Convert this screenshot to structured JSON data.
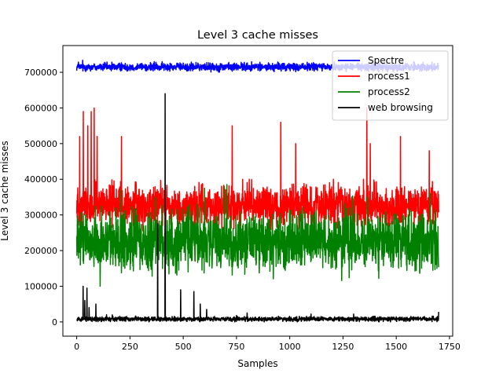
{
  "chart_data": {
    "type": "line",
    "title": "Level 3 cache misses",
    "xlabel": "Samples",
    "ylabel": "Level 3 cache misses",
    "xlim": [
      -65,
      1765
    ],
    "ylim": [
      -40000,
      775000
    ],
    "xticks": [
      0,
      250,
      500,
      750,
      1000,
      1250,
      1500,
      1750
    ],
    "yticks": [
      0,
      100000,
      200000,
      300000,
      400000,
      500000,
      600000,
      700000
    ],
    "grid": false,
    "legend_position": "top-right",
    "n_samples": 1700,
    "series": [
      {
        "name": "Spectre",
        "color": "#0000ff",
        "base": 715000,
        "noise": 7000,
        "min": 698000,
        "max": 738000,
        "spikes": []
      },
      {
        "name": "process1",
        "color": "#ff0000",
        "base": 325000,
        "noise": 35000,
        "min": 160000,
        "max": 400000,
        "spikes": [
          [
            14,
            520000
          ],
          [
            31,
            590000
          ],
          [
            52,
            550000
          ],
          [
            68,
            590000
          ],
          [
            82,
            600000
          ],
          [
            96,
            520000
          ],
          [
            210,
            520000
          ],
          [
            556,
            170000
          ],
          [
            730,
            550000
          ],
          [
            958,
            560000
          ],
          [
            1028,
            500000
          ],
          [
            1205,
            400000
          ],
          [
            1362,
            600000
          ],
          [
            1378,
            500000
          ],
          [
            1520,
            520000
          ],
          [
            1655,
            480000
          ]
        ]
      },
      {
        "name": "process2",
        "color": "#008000",
        "base": 225000,
        "noise": 50000,
        "min": 65000,
        "max": 380000,
        "spikes": [
          [
            42,
            300000
          ],
          [
            110,
            100000
          ],
          [
            370,
            350000
          ],
          [
            600,
            375000
          ],
          [
            705,
            385000
          ],
          [
            1365,
            350000
          ],
          [
            1660,
            360000
          ]
        ]
      },
      {
        "name": "web browsing",
        "color": "#000000",
        "base": 8000,
        "noise": 4000,
        "min": 0,
        "max": 30000,
        "spikes": [
          [
            30,
            100000
          ],
          [
            38,
            60000
          ],
          [
            48,
            95000
          ],
          [
            58,
            40000
          ],
          [
            90,
            50000
          ],
          [
            140,
            20000
          ],
          [
            170,
            15000
          ],
          [
            380,
            275000
          ],
          [
            415,
            640000
          ],
          [
            488,
            90000
          ],
          [
            550,
            85000
          ],
          [
            580,
            50000
          ],
          [
            610,
            35000
          ],
          [
            800,
            25000
          ],
          [
            1100,
            22000
          ],
          [
            1300,
            22000
          ],
          [
            1700,
            28000
          ]
        ]
      }
    ]
  }
}
